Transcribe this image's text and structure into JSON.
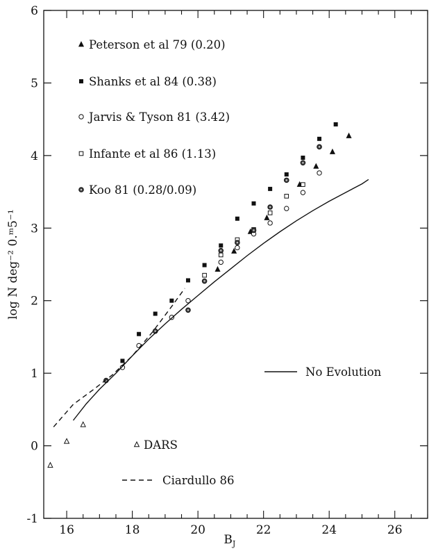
{
  "chart_data": {
    "type": "scatter",
    "xlabel": "B",
    "xlabel_sub": "J",
    "ylabel": "log N deg⁻² 0.ᵐ5⁻¹",
    "xlim": [
      15.3,
      27
    ],
    "ylim": [
      -1,
      6
    ],
    "xticks": [
      16,
      18,
      20,
      22,
      24,
      26
    ],
    "yticks": [
      -1,
      0,
      1,
      2,
      3,
      4,
      5,
      6
    ],
    "legend_placement": "upper-left",
    "series": [
      {
        "name": "Peterson et al 79 (0.20)",
        "marker": "triangle-filled",
        "x": [
          20.6,
          21.1,
          21.6,
          22.1,
          23.1,
          23.6,
          24.1,
          24.6
        ],
        "y": [
          2.43,
          2.68,
          2.95,
          3.14,
          3.6,
          3.85,
          4.05,
          4.27
        ]
      },
      {
        "name": "Shanks et al 84 (0.38)",
        "marker": "square-filled",
        "x": [
          17.7,
          18.2,
          18.7,
          19.2,
          19.7,
          20.2,
          20.7,
          21.2,
          21.7,
          22.2,
          22.7,
          23.2,
          23.7,
          24.2
        ],
        "y": [
          1.17,
          1.54,
          1.82,
          2.0,
          2.28,
          2.49,
          2.76,
          3.13,
          3.34,
          3.54,
          3.74,
          3.97,
          4.23,
          4.43
        ]
      },
      {
        "name": "Jarvis & Tyson 81 (3.42)",
        "marker": "circle-open",
        "x": [
          17.7,
          18.2,
          18.7,
          19.2,
          19.7,
          20.7,
          21.2,
          21.7,
          22.2,
          22.7,
          23.2,
          23.7
        ],
        "y": [
          1.08,
          1.38,
          1.58,
          1.77,
          2.0,
          2.53,
          2.73,
          2.92,
          3.07,
          3.27,
          3.49,
          3.76
        ]
      },
      {
        "name": "Infante et al 86 (1.13)",
        "marker": "square-open",
        "x": [
          20.2,
          20.7,
          21.2,
          21.7,
          22.2,
          22.7,
          23.2
        ],
        "y": [
          2.35,
          2.63,
          2.84,
          2.98,
          3.21,
          3.44,
          3.6
        ]
      },
      {
        "name": "Koo 81 (0.28/0.09)",
        "marker": "circle-dotted",
        "x": [
          17.2,
          18.7,
          19.7,
          20.2,
          20.7,
          21.2,
          21.7,
          22.2,
          22.7,
          23.2,
          23.7
        ],
        "y": [
          0.9,
          1.58,
          1.87,
          2.27,
          2.69,
          2.8,
          2.97,
          3.29,
          3.66,
          3.9,
          4.12
        ]
      },
      {
        "name": "DARS",
        "marker": "triangle-open",
        "x": [
          15.5,
          16.0,
          16.5
        ],
        "y": [
          -0.27,
          0.06,
          0.29
        ]
      },
      {
        "name": "No Evolution",
        "style": "solid-line",
        "x": [
          16.2,
          16.6,
          17.0,
          17.5,
          18.0,
          18.5,
          19.0,
          19.5,
          20.0,
          20.5,
          21.0,
          21.5,
          22.0,
          22.5,
          23.0,
          23.5,
          24.0,
          24.5,
          25.0,
          25.2
        ],
        "y": [
          0.35,
          0.58,
          0.78,
          1.0,
          1.24,
          1.47,
          1.68,
          1.88,
          2.07,
          2.26,
          2.44,
          2.62,
          2.79,
          2.95,
          3.1,
          3.24,
          3.37,
          3.49,
          3.61,
          3.67
        ]
      },
      {
        "name": "Ciardullo 86",
        "style": "dashed-line",
        "x": [
          15.6,
          16.2,
          16.8,
          17.4,
          18.0,
          18.6,
          19.2,
          19.6
        ],
        "y": [
          0.26,
          0.57,
          0.77,
          0.98,
          1.24,
          1.56,
          1.92,
          2.17
        ]
      }
    ]
  }
}
